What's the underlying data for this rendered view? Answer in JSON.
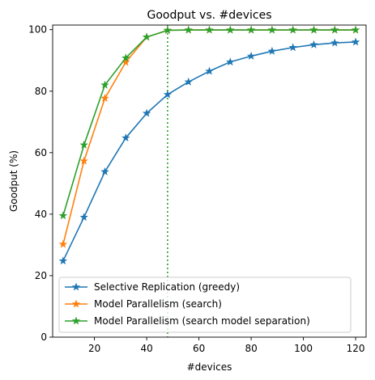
{
  "chart_data": {
    "type": "line",
    "title": "Goodput vs. #devices",
    "xlabel": "#devices",
    "ylabel": "Goodput (%)",
    "xlim": [
      4,
      124
    ],
    "ylim": [
      0,
      101.5
    ],
    "xticks": [
      20,
      40,
      60,
      80,
      100,
      120
    ],
    "yticks": [
      0,
      20,
      40,
      60,
      80,
      100
    ],
    "grid": false,
    "legend_position": "lower-center",
    "marker": "star",
    "series": [
      {
        "name": "Selective Replication (greedy)",
        "color": "#1f77b4",
        "x": [
          8,
          16,
          24,
          32,
          40,
          48,
          56,
          64,
          72,
          80,
          88,
          96,
          104,
          112,
          120
        ],
        "y": [
          24.8,
          39.0,
          53.8,
          64.8,
          72.8,
          78.9,
          83.0,
          86.5,
          89.5,
          91.4,
          93.0,
          94.2,
          95.1,
          95.7,
          96.0
        ]
      },
      {
        "name": "Model Parallelism (search)",
        "color": "#ff7f0e",
        "x": [
          8,
          16,
          24,
          32,
          40,
          48,
          56,
          64,
          72,
          80,
          88,
          96,
          104,
          112,
          120
        ],
        "y": [
          30.2,
          57.3,
          77.7,
          89.4,
          97.6,
          99.8,
          99.9,
          99.9,
          99.9,
          99.9,
          99.9,
          99.9,
          99.9,
          99.9,
          99.9
        ]
      },
      {
        "name": "Model Parallelism (search model separation)",
        "color": "#2ca02c",
        "x": [
          8,
          16,
          24,
          32,
          40,
          48,
          56,
          64,
          72,
          80,
          88,
          96,
          104,
          112,
          120
        ],
        "y": [
          39.5,
          62.5,
          82.0,
          90.8,
          97.6,
          99.8,
          99.9,
          99.9,
          99.9,
          99.9,
          99.9,
          99.9,
          99.9,
          99.9,
          99.9
        ]
      }
    ],
    "reference_line": {
      "orientation": "vertical",
      "x": 48,
      "color": "#2ca02c",
      "style": "dotted"
    }
  }
}
